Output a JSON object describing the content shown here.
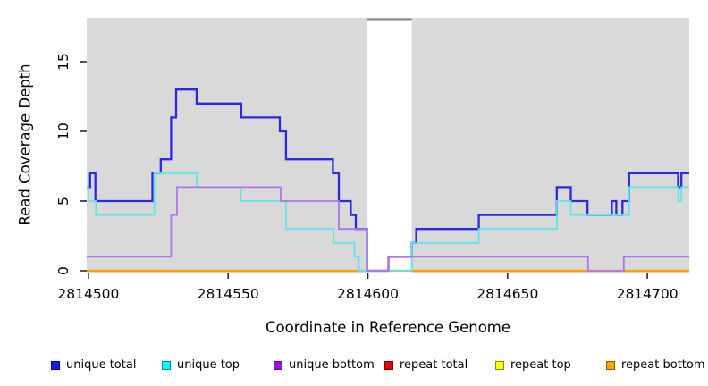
{
  "figure": {
    "xlabel": "Coordinate in Reference Genome",
    "ylabel": "Read Coverage Depth"
  },
  "chart_data": {
    "type": "line",
    "step": true,
    "title": "",
    "xlabel": "Coordinate in Reference Genome",
    "ylabel": "Read Coverage Depth",
    "xlim": [
      2814499.4,
      2814715.0
    ],
    "ylim": [
      -0.1,
      18.1
    ],
    "panel_bg": "#d9d9d9",
    "grid": false,
    "legend_position": "bottom-horizontal",
    "x_ticks": [
      {
        "value": 2814500,
        "label": "2814500"
      },
      {
        "value": 2814550,
        "label": "2814550"
      },
      {
        "value": 2814600,
        "label": "2814600"
      },
      {
        "value": 2814650,
        "label": "2814650"
      },
      {
        "value": 2814700,
        "label": "2814700"
      }
    ],
    "y_ticks": [
      {
        "value": 0,
        "label": "0"
      },
      {
        "value": 5,
        "label": "5"
      },
      {
        "value": 10,
        "label": "10"
      },
      {
        "value": 15,
        "label": "15"
      }
    ],
    "mask_region": {
      "x_start": 2814599.7,
      "x_end": 2814615.7,
      "cap_value": 18.05,
      "cap_color": "#8f8f8f"
    },
    "draw_order": [
      "repeat_total",
      "repeat_top",
      "repeat_bottom",
      "unique_total",
      "unique_top",
      "unique_bottom"
    ],
    "legend_order": [
      "unique_total",
      "unique_top",
      "unique_bottom",
      "repeat_total",
      "repeat_top",
      "repeat_bottom"
    ],
    "series": {
      "unique_total": {
        "label": "unique total",
        "color": "#2a2ae0",
        "swatch": "#1a1aee",
        "swatch_border": "#000090",
        "width": 2.3,
        "points": [
          [
            2814499.4,
            6
          ],
          [
            2814500.6,
            7
          ],
          [
            2814502.5,
            5
          ],
          [
            2814522.9,
            7
          ],
          [
            2814525.9,
            8
          ],
          [
            2814529.6,
            11
          ],
          [
            2814531.4,
            13
          ],
          [
            2814538.7,
            12
          ],
          [
            2814554.7,
            11
          ],
          [
            2814568.5,
            10
          ],
          [
            2814570.7,
            8
          ],
          [
            2814587.5,
            7
          ],
          [
            2814589.6,
            5
          ],
          [
            2814593.9,
            4
          ],
          [
            2814595.7,
            3
          ],
          [
            2814599.7,
            0
          ],
          [
            2814607.4,
            1
          ],
          [
            2814615.7,
            2
          ],
          [
            2814617.3,
            3
          ],
          [
            2814639.7,
            4
          ],
          [
            2814667.6,
            6
          ],
          [
            2814672.6,
            5
          ],
          [
            2814678.6,
            4
          ],
          [
            2814687.3,
            5
          ],
          [
            2814688.9,
            4
          ],
          [
            2814691.1,
            5
          ],
          [
            2814693.5,
            7
          ],
          [
            2814711.0,
            6
          ],
          [
            2814712.2,
            7
          ]
        ]
      },
      "unique_top": {
        "label": "unique top",
        "color": "#5fe6ec",
        "swatch": "#00ffff",
        "swatch_border": "#008b8b",
        "width": 1.8,
        "points": [
          [
            2814499.4,
            6
          ],
          [
            2814500.0,
            5
          ],
          [
            2814502.7,
            4
          ],
          [
            2814523.6,
            7
          ],
          [
            2814538.7,
            6
          ],
          [
            2814554.5,
            5
          ],
          [
            2814570.7,
            3
          ],
          [
            2814587.7,
            2
          ],
          [
            2814595.2,
            1
          ],
          [
            2814596.8,
            0
          ],
          [
            2814615.7,
            2
          ],
          [
            2814639.7,
            3
          ],
          [
            2814667.6,
            5
          ],
          [
            2814672.6,
            4
          ],
          [
            2814693.5,
            6
          ],
          [
            2814711.0,
            5
          ],
          [
            2814712.2,
            6
          ]
        ]
      },
      "unique_bottom": {
        "label": "unique bottom",
        "color": "#b273e8",
        "swatch": "#9a10dd",
        "swatch_border": "#55108b",
        "width": 1.8,
        "points": [
          [
            2814499.4,
            1
          ],
          [
            2814529.6,
            4
          ],
          [
            2814531.7,
            6
          ],
          [
            2814568.8,
            5
          ],
          [
            2814589.6,
            3
          ],
          [
            2814599.7,
            0
          ],
          [
            2814607.4,
            1
          ],
          [
            2814678.8,
            0
          ],
          [
            2814691.6,
            1
          ]
        ]
      },
      "repeat_total": {
        "label": "repeat total",
        "color": "#ee1111",
        "swatch": "#ee0000",
        "swatch_border": "#7d0000",
        "width": 2,
        "points": [
          [
            2814499.4,
            0
          ]
        ]
      },
      "repeat_top": {
        "label": "repeat top",
        "color": "#ffff00",
        "swatch": "#ffff00",
        "swatch_border": "#8b8b00",
        "width": 2,
        "points": [
          [
            2814499.4,
            0
          ]
        ]
      },
      "repeat_bottom": {
        "label": "repeat bottom",
        "color": "#ff9f00",
        "swatch": "#ffa500",
        "swatch_border": "#8b5a00",
        "width": 2.2,
        "points": [
          [
            2814499.4,
            0
          ]
        ]
      }
    }
  }
}
